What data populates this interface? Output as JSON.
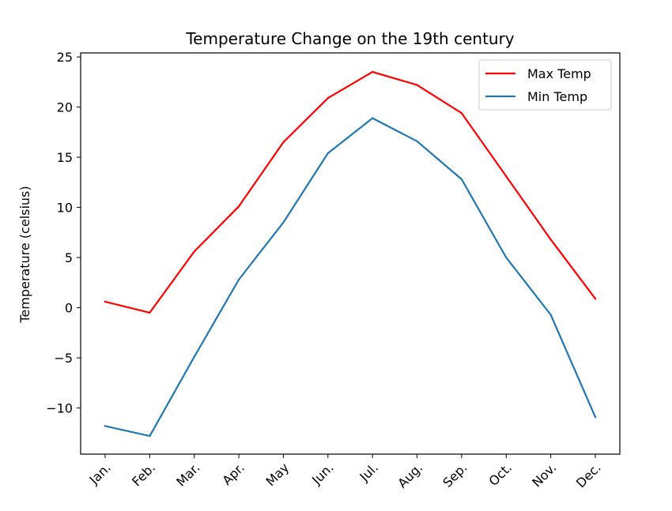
{
  "chart_data": {
    "type": "line",
    "title": "Temperature Change on the 19th century",
    "xlabel": "",
    "ylabel": "Temperature (celsius)",
    "categories": [
      "Jan.",
      "Feb.",
      "Mar.",
      "Apr.",
      "May",
      "Jun.",
      "Jul.",
      "Aug.",
      "Sep.",
      "Oct.",
      "Nov.",
      "Dec."
    ],
    "ylim": [
      -14.6,
      25.4
    ],
    "yticks": [
      -10,
      -5,
      0,
      5,
      10,
      15,
      20,
      25
    ],
    "ytick_labels": [
      "−10",
      "−5",
      "0",
      "5",
      "10",
      "15",
      "20",
      "25"
    ],
    "grid": false,
    "legend_position": "upper right",
    "series": [
      {
        "name": "Max Temp",
        "color": "#ff0000",
        "values": [
          0.6,
          -0.5,
          5.6,
          10.1,
          16.5,
          20.9,
          23.5,
          22.2,
          19.4,
          13.1,
          6.8,
          0.9
        ]
      },
      {
        "name": "Min Temp",
        "color": "#1f77b4",
        "values": [
          -11.8,
          -12.8,
          -4.9,
          2.8,
          8.5,
          15.4,
          18.9,
          16.6,
          12.8,
          5.0,
          -0.7,
          -10.9
        ]
      }
    ]
  }
}
